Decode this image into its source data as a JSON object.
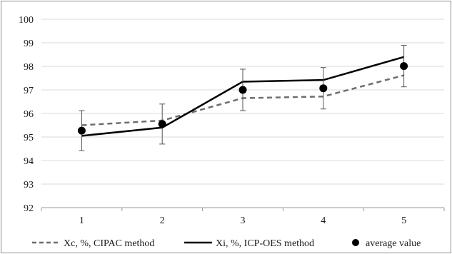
{
  "chart_data": {
    "type": "line",
    "title": "",
    "xlabel": "",
    "ylabel": "",
    "categories": [
      "1",
      "2",
      "3",
      "4",
      "5"
    ],
    "ylim": [
      92,
      100
    ],
    "yticks": [
      "92",
      "93",
      "94",
      "95",
      "96",
      "97",
      "98",
      "99",
      "100"
    ],
    "grid": "horizontal",
    "legend_position": "bottom",
    "series": [
      {
        "name": "Xc, %, CIPAC method",
        "style": "dashed",
        "color": "#6e6e6e",
        "values": [
          95.5,
          95.7,
          96.65,
          96.72,
          97.62
        ]
      },
      {
        "name": "Xi, %, ICP-OES method",
        "style": "solid",
        "color": "#000000",
        "values": [
          95.05,
          95.4,
          97.35,
          97.42,
          98.4
        ]
      },
      {
        "name": "average value",
        "style": "markers",
        "color": "#000000",
        "values": [
          95.27,
          95.55,
          97.0,
          97.07,
          98.01
        ],
        "error": [
          0.85,
          0.85,
          0.88,
          0.88,
          0.88
        ]
      }
    ]
  }
}
